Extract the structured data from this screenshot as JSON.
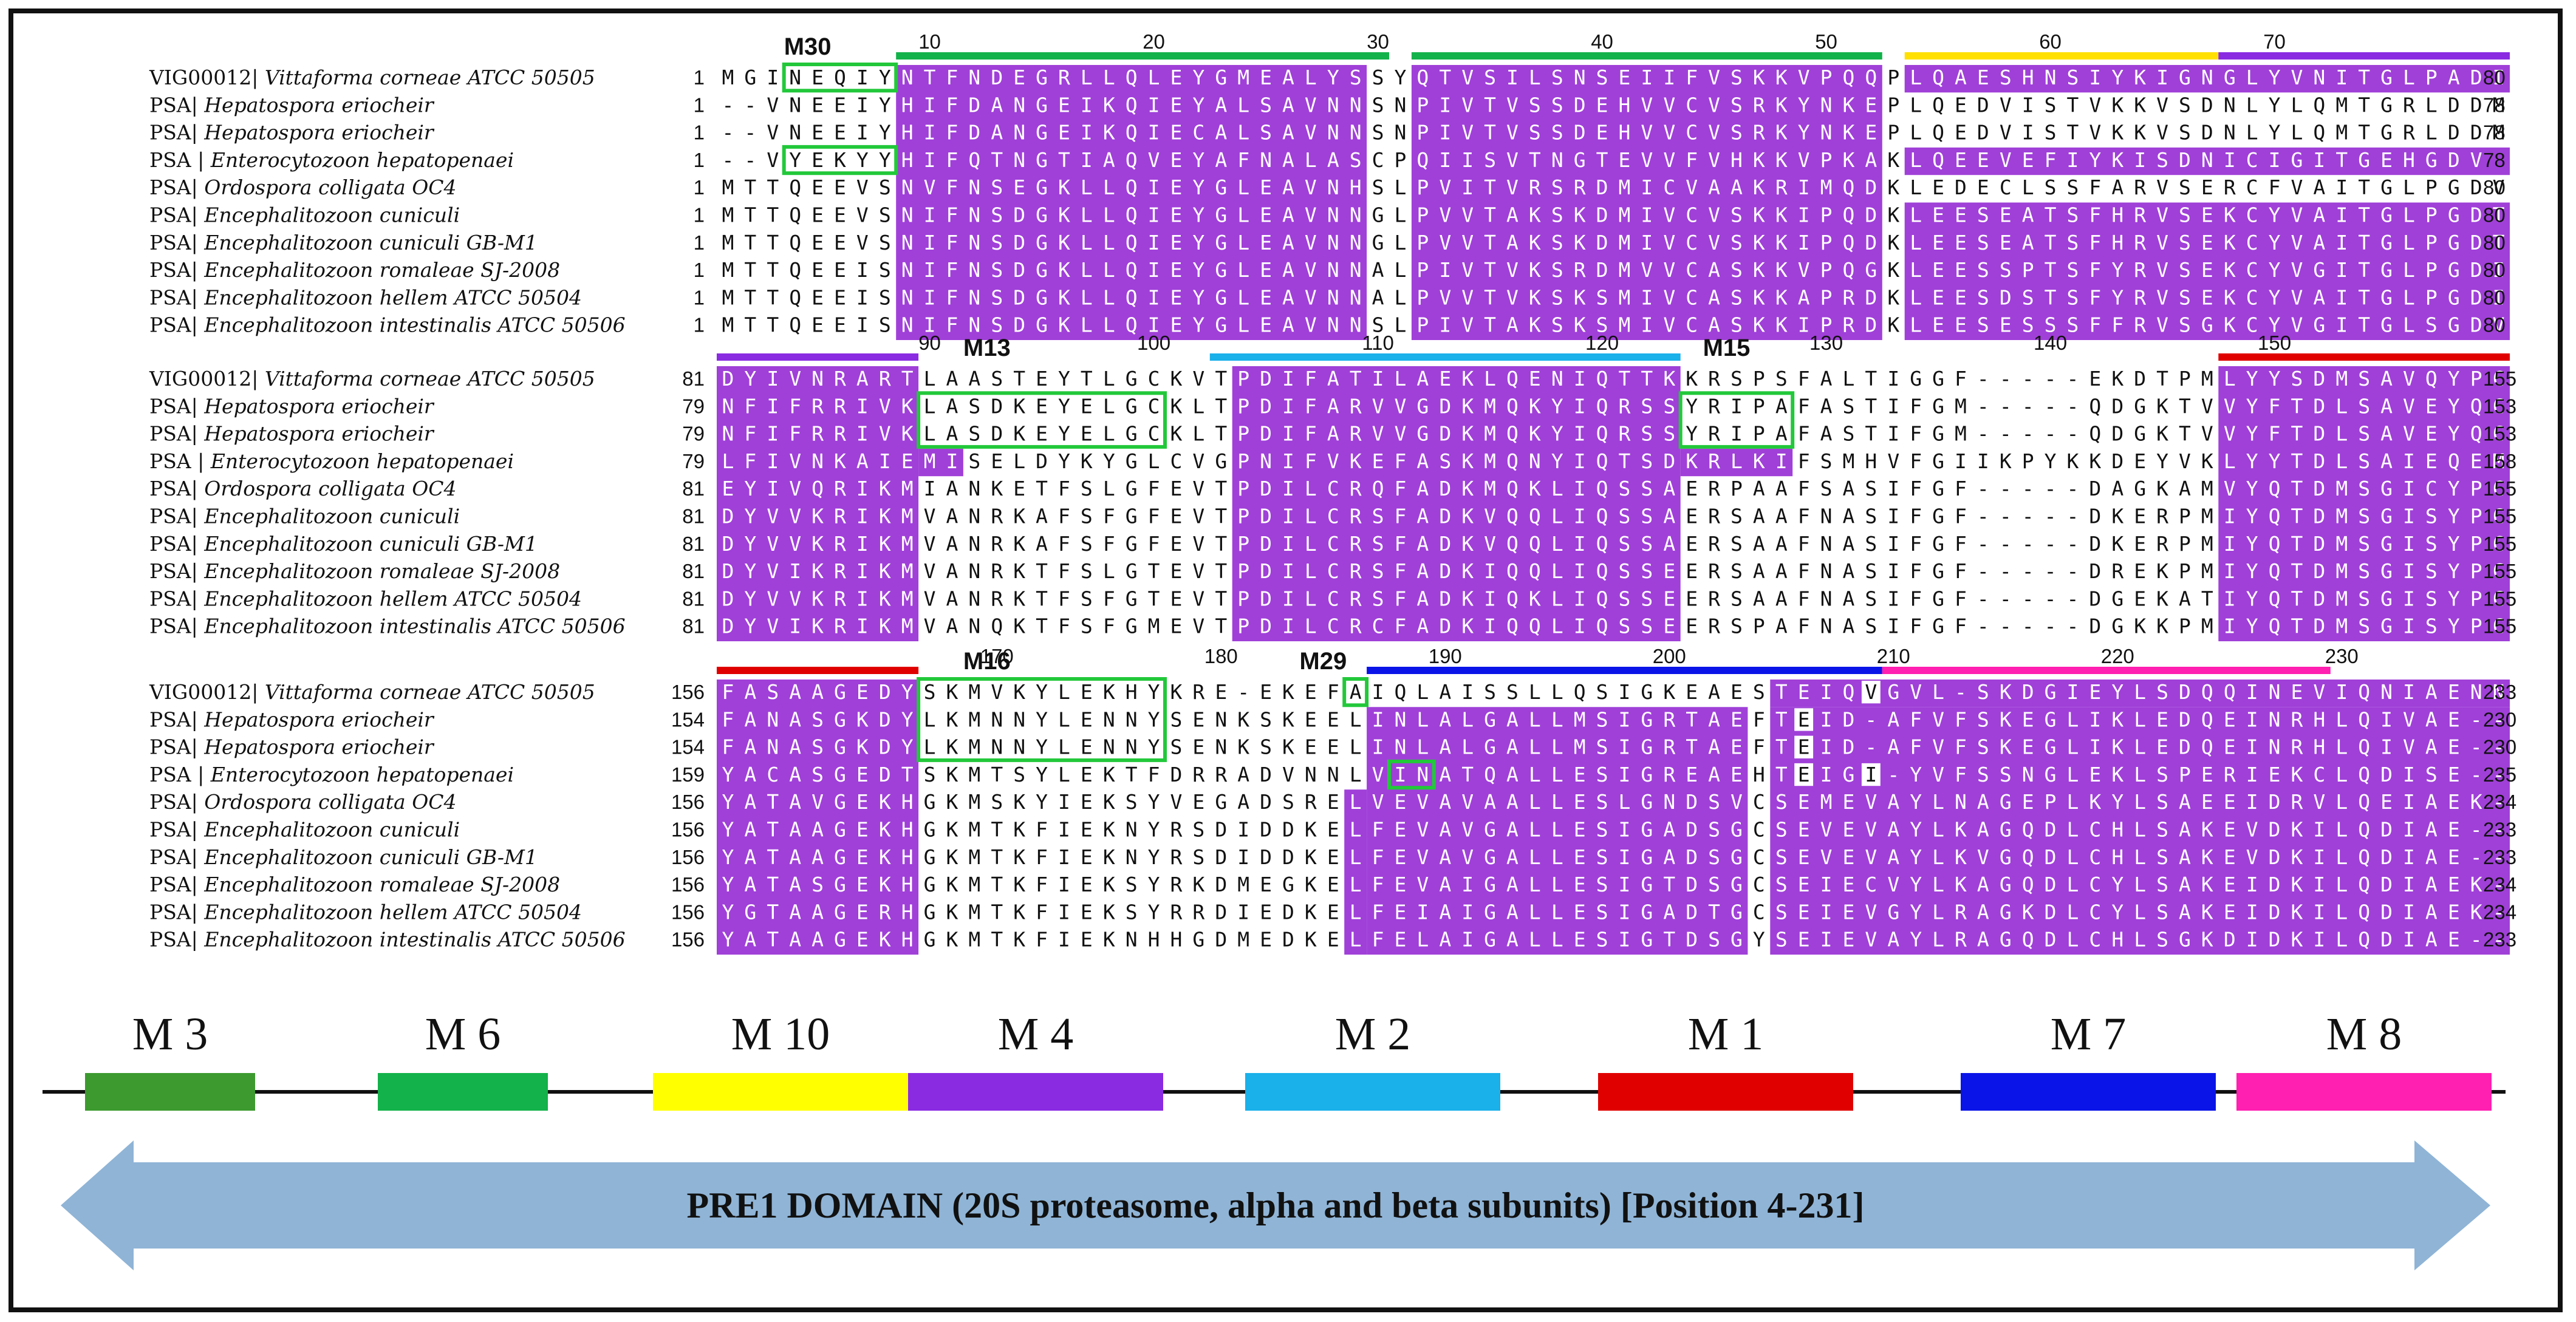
{
  "species": [
    {
      "id": "VIG00012",
      "name": "Vittaforma corneae ATCC 50505"
    },
    {
      "id": "PSA",
      "name": "Hepatospora eriocheir"
    },
    {
      "id": "PSA",
      "name": "Hepatospora eriocheir"
    },
    {
      "id": "PSA ",
      "name": "Enterocytozoon hepatopenaei"
    },
    {
      "id": "PSA",
      "name": "Ordospora colligata OC4"
    },
    {
      "id": "PSA",
      "name": "Encephalitozoon cuniculi"
    },
    {
      "id": "PSA",
      "name": "Encephalitozoon cuniculi GB-M1"
    },
    {
      "id": "PSA",
      "name": "Encephalitozoon romaleae SJ-2008"
    },
    {
      "id": "PSA",
      "name": "Encephalitozoon hellem ATCC 50504"
    },
    {
      "id": "PSA",
      "name": "Encephalitozoon intestinalis ATCC 50506"
    }
  ],
  "blocks": [
    {
      "ticks": [
        {
          "label": "10",
          "col": 9
        },
        {
          "label": "20",
          "col": 19
        },
        {
          "label": "30",
          "col": 29
        },
        {
          "label": "40",
          "col": 39
        },
        {
          "label": "50",
          "col": 49
        },
        {
          "label": "60",
          "col": 59
        },
        {
          "label": "70",
          "col": 69
        }
      ],
      "rows": [
        {
          "start": "1",
          "seq": "MGINEQIYNTFNDEGRLLQLEYGMEALYSSYQTVSILSNSEIIFVSKKVPQQPLQAESHNSIYKIGNGLYVNITGLPADI",
          "end": "80"
        },
        {
          "start": "1",
          "seq": "--VNEEIYHIFDANGEIKQIEYALSAVNNSNPIVTVSSDEHVVCVSRKYNKEPLQEDVISTVKKVSDNLYLQMTGRLDDM",
          "end": "78"
        },
        {
          "start": "1",
          "seq": "--VNEEIYHIFDANGEIKQIECALSAVNNSNPIVTVSSDEHVVCVSRKYNKEPLQEDVISTVKKVSDNLYLQMTGRLDDM",
          "end": "78"
        },
        {
          "start": "1",
          "seq": "--VYEKYYHIFQTNGTIAQVEYAFNALASCPQIISVTNGTEVVFVHKKVPKAKLQEEVEFIYKISDNICIGITGEHGDV",
          "end": "78"
        },
        {
          "start": "1",
          "seq": "MTTQEEVSNVFNSEGKLLQIEYGLEAVNHSLPVITVRSRDMICVAAKRIMQDKLEDECLSSFARVSERCFVAITGLPGDV",
          "end": "80"
        },
        {
          "start": "1",
          "seq": "MTTQEEVSNIFNSDGKLLQIEYGLEAVNNGLPVVTAKSKDMIVCVSKKIPQDKLEESEATSFHRVSEKCYVAITGLPGDT",
          "end": "80"
        },
        {
          "start": "1",
          "seq": "MTTQEEVSNIFNSDGKLLQIEYGLEAVNNGLPVVTAKSKDMIVCVSKKIPQDKLEESEATSFHRVSEKCYVAITGLPGDT",
          "end": "80"
        },
        {
          "start": "1",
          "seq": "MTTQEEISNIFNSDGKLLQIEYGLEAVNNALPIVTVKSRDMVVCASKKVPQGKLEESSPTSFYRVSEKCYVGITGLPGDI",
          "end": "80"
        },
        {
          "start": "1",
          "seq": "MTTQEEISNIFNSDGKLLQIEYGLEAVNNALPVVTVKSKSMIVCASKKAPRDKLEESDSTSFYRVSEKCYVAITGLPGDI",
          "end": "80"
        },
        {
          "start": "1",
          "seq": "MTTQEEISNIFNSDGKLLQIEYGLEAVNNSLPIVTAKSKSMIVCASKKIPRDKLEESESSSFFRVSGKCYVGITGLSGDV",
          "end": "80"
        }
      ]
    },
    {
      "ticks": [
        {
          "label": "90",
          "col": 9
        },
        {
          "label": "100",
          "col": 19
        },
        {
          "label": "110",
          "col": 29
        },
        {
          "label": "120",
          "col": 39
        },
        {
          "label": "130",
          "col": 49
        },
        {
          "label": "140",
          "col": 59
        },
        {
          "label": "150",
          "col": 69
        }
      ],
      "rows": [
        {
          "start": "81",
          "seq": "DYIVNRARTLAASTEYTLGCKVTPDIFATILAEKLQENIQTTKKRSPSFALTIGGF-----EKDTPMLYYSDMSAVQYPC",
          "end": "155"
        },
        {
          "start": "79",
          "seq": "NFIFRRIVKLASDKEYELGCKLTPDIFARVVGDKMQKYIQRSSYRIPAFASTIFGM-----QDGKTVVYFTDLSAVEYQC",
          "end": "153"
        },
        {
          "start": "79",
          "seq": "NFIFRRIVKLASDKEYELGCKLTPDIFARVVGDKMQKYIQRSSYRIPAFASTIFGM-----QDGKTVVYFTDLSAVEYQC",
          "end": "153"
        },
        {
          "start": "79",
          "seq": "LFIVNKAIEMISELDYKYGLCVGPNIFVKEFASKMQNYIQTSDKRLKIFSMHVFGIIKPYKKDEYVKLYYTDLSAIEQEM",
          "end": "158"
        },
        {
          "start": "81",
          "seq": "EYIVQRIKMIANKETFSLGFEVTPDILCRQFADKMQKLIQSSAERPAAFSASIFGF-----DAGKAMVYQTDMSGICYPC",
          "end": "155"
        },
        {
          "start": "81",
          "seq": "DYVVKRIKMVANRKAFSFGFEVTPDILCRSFADKVQQLIQSSAERSAAFNASIFGF-----DKERPMIYQTDMSGISYPC",
          "end": "155"
        },
        {
          "start": "81",
          "seq": "DYVVKRIKMVANRKAFSFGFEVTPDILCRSFADKVQQLIQSSAERSAAFNASIFGF-----DKERPMIYQTDMSGISYPC",
          "end": "155"
        },
        {
          "start": "81",
          "seq": "DYVIKRIKMVANRKTFSLGTEVTPDILCRSFADKIQQLIQSSEERSAAFNASIFGF-----DREKPMIYQTDMSGISYPC",
          "end": "155"
        },
        {
          "start": "81",
          "seq": "DYVVKRIKMVANRKTFSFGTEVTPDILCRSFADKIQKLIQSSEERSAAFNASIFGF-----DGEKATIYQTDMSGISYPC",
          "end": "155"
        },
        {
          "start": "81",
          "seq": "DYVIKRIKMVANQKTFSFGMEVTPDILCRCFADKIQQLIQSSEERSPAFNASIFGF-----DGKKPMIYQTDMSGISYPC",
          "end": "155"
        }
      ]
    },
    {
      "ticks": [
        {
          "label": "170",
          "col": 12
        },
        {
          "label": "180",
          "col": 22
        },
        {
          "label": "190",
          "col": 32
        },
        {
          "label": "200",
          "col": 42
        },
        {
          "label": "210",
          "col": 52
        },
        {
          "label": "220",
          "col": 62
        },
        {
          "label": "230",
          "col": 72
        }
      ],
      "rows": [
        {
          "start": "156",
          "seq": "FASAAGEDYSKMVKYLEKHYKRE-EKEFAIQLAISSLLQSIGKEAESTEIQVGVL-SKDGIEYLSDQQINEVIQNIAENN",
          "end": "233"
        },
        {
          "start": "154",
          "seq": "FANASGKDYLKMNNYLENNYSENKSKEELINLALGALLMSIGRTAEFTEID-AFVFSKEGLIKLEDQEINRHLQIVAE--",
          "end": "230"
        },
        {
          "start": "154",
          "seq": "FANASGKDYLKMNNYLENNYSENKSKEELINLALGALLMSIGRTAEFTEID-AFVFSKEGLIKLEDQEINRHLQIVAE--",
          "end": "230"
        },
        {
          "start": "159",
          "seq": "YACASGEDTSKMTSYLEKTFDRRADVNNLVINATQALLESIGREAEHTEIGI-YVFSSNGLEKLSPERIEKCLQDISE--",
          "end": "235"
        },
        {
          "start": "156",
          "seq": "YATAVGEKHGKMSKYIEKSYVEGADSRELVEVAVAALLESLGNDSVCSEMEVAYLNAGEPLKYLSAEEIDRVLQEIAEK-",
          "end": "234"
        },
        {
          "start": "156",
          "seq": "YATAAGEKHGKMTKFIEKNYRSDIDDKELFEVAVGALLESIGADSGCSEVEVAYLKAGQDLCHLSAKEVDKILQDIAE--",
          "end": "233"
        },
        {
          "start": "156",
          "seq": "YATAAGEKHGKMTKFIEKNYRSDIDDKELFEVAVGALLESIGADSGCSEVEVAYLKVGQDLCHLSAKEVDKILQDIAE--",
          "end": "233"
        },
        {
          "start": "156",
          "seq": "YATASGEKHGKMTKFIEKSYRKDMEGKELFEVAIGALLESIGTDSGCSEIECVYLKAGQDLCYLSAKEIDKILQDIAEK-",
          "end": "234"
        },
        {
          "start": "156",
          "seq": "YGTAAGERHGKMTKFIEKSYRRDIEDKELFEIAIGALLESIGADTGCSEIEVGYLRAGKDLCYLSAKEIDKILQDIAEK-",
          "end": "234"
        },
        {
          "start": "156",
          "seq": "YATAAGEKHGKMTKFIEKNHHGDMEDKELFELAIGALLESIGTDSGYSEIEVAYLRAGQDLCHLSGKDIDKILQDIAE--",
          "end": "233"
        }
      ]
    }
  ],
  "motif_labels": [
    "M30",
    "M13",
    "M15",
    "M16",
    "M29"
  ],
  "domain_map": {
    "motifs": [
      {
        "label": "M 3",
        "color": "#3c9a2e"
      },
      {
        "label": "M 6",
        "color": "#13b24a"
      },
      {
        "label": "M 10",
        "color": "#ffff00"
      },
      {
        "label": "M 4",
        "color": "#8a2be2"
      },
      {
        "label": "M 2",
        "color": "#1ab0ea"
      },
      {
        "label": "M 1",
        "color": "#e00000"
      },
      {
        "label": "M 7",
        "color": "#0a14e8"
      },
      {
        "label": "M 8",
        "color": "#ff1fb0"
      }
    ],
    "domain_text": "PRE1 DOMAIN (20S proteasome, alpha and beta subunits) [Position 4-231]"
  },
  "colors": {
    "highlight": "#a040d8",
    "motif_box": "#22c83a",
    "arrow": "#8fb4d6"
  }
}
